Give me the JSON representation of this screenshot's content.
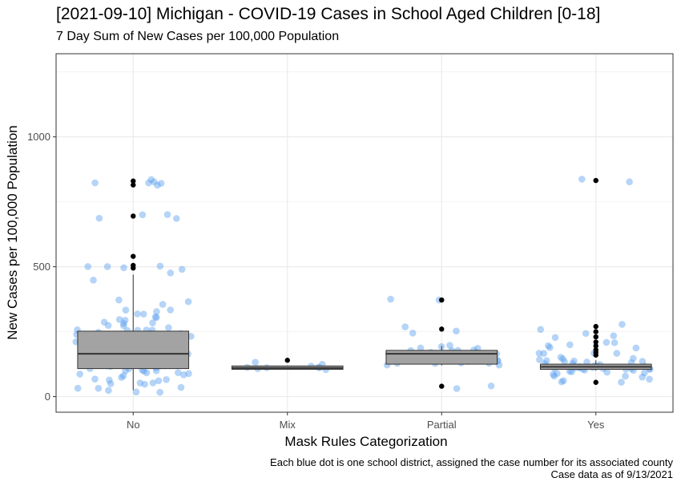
{
  "chart_data": {
    "type": "box",
    "title": "[2021-09-10] Michigan - COVID-19 Cases in School Aged Children [0-18]",
    "subtitle": "7 Day Sum of New Cases per 100,000 Population",
    "xlabel": "Mask Rules Categorization",
    "ylabel": "New Cases per 100,000 Population",
    "ylim": [
      -60,
      1320
    ],
    "yticks": [
      0,
      500,
      1000
    ],
    "grid": true,
    "legend": "none",
    "categories": [
      "No",
      "Mix",
      "Partial",
      "Yes"
    ],
    "caption": [
      "Each blue dot is one school district, assigned the case number for its associated county",
      "Case data as of 9/13/2021"
    ],
    "boxes": [
      {
        "category": "No",
        "min": 25,
        "q1": 108,
        "median": 165,
        "q3": 252,
        "max": 470,
        "outliers": [
          495,
          505,
          540,
          695,
          815,
          830
        ]
      },
      {
        "category": "Mix",
        "min": 105,
        "q1": 105,
        "median": 110,
        "q3": 118,
        "max": 120,
        "outliers": [
          140
        ]
      },
      {
        "category": "Partial",
        "min": 120,
        "q1": 125,
        "median": 165,
        "q3": 178,
        "max": 195,
        "outliers": [
          40,
          260,
          372
        ]
      },
      {
        "category": "Yes",
        "min": 100,
        "q1": 105,
        "median": 115,
        "q3": 125,
        "max": 140,
        "outliers": [
          55,
          160,
          170,
          180,
          195,
          210,
          230,
          250,
          270,
          832
        ]
      }
    ],
    "points": [
      {
        "category": "No",
        "values": [
          832,
          832,
          830,
          830,
          820,
          818,
          695,
          695,
          692,
          692,
          500,
          500,
          498,
          497,
          495,
          470,
          445,
          372,
          365,
          350,
          340,
          330,
          325,
          320,
          310,
          305,
          300,
          295,
          290,
          285,
          280,
          275,
          270,
          268,
          265,
          262,
          260,
          258,
          255,
          252,
          250,
          248,
          245,
          242,
          240,
          238,
          235,
          232,
          230,
          228,
          225,
          222,
          220,
          218,
          215,
          212,
          210,
          208,
          205,
          202,
          200,
          198,
          195,
          192,
          190,
          188,
          185,
          182,
          180,
          178,
          175,
          172,
          170,
          168,
          165,
          162,
          160,
          158,
          155,
          152,
          150,
          148,
          145,
          142,
          140,
          138,
          135,
          132,
          130,
          128,
          125,
          122,
          120,
          118,
          115,
          112,
          110,
          108,
          105,
          102,
          100,
          98,
          95,
          92,
          90,
          88,
          85,
          82,
          80,
          78,
          75,
          72,
          70,
          65,
          60,
          55,
          50,
          45,
          40,
          35,
          30,
          25,
          25,
          25
        ]
      },
      {
        "category": "Mix",
        "values": [
          140,
          120,
          118,
          115,
          112,
          110,
          108,
          105,
          105
        ]
      },
      {
        "category": "Partial",
        "values": [
          372,
          372,
          260,
          260,
          250,
          195,
          190,
          185,
          180,
          180,
          178,
          178,
          175,
          175,
          172,
          170,
          170,
          168,
          165,
          165,
          162,
          160,
          160,
          158,
          155,
          150,
          148,
          145,
          142,
          140,
          138,
          135,
          130,
          128,
          125,
          122,
          120,
          120,
          40,
          40
        ]
      },
      {
        "category": "Yes",
        "values": [
          832,
          832,
          270,
          265,
          250,
          230,
          220,
          210,
          200,
          195,
          190,
          185,
          180,
          175,
          170,
          165,
          160,
          155,
          150,
          145,
          140,
          138,
          135,
          132,
          130,
          128,
          125,
          125,
          122,
          122,
          120,
          120,
          118,
          118,
          115,
          115,
          115,
          112,
          112,
          110,
          110,
          108,
          108,
          105,
          105,
          102,
          100,
          100,
          98,
          95,
          92,
          90,
          85,
          80,
          75,
          70,
          65,
          60,
          55,
          55
        ]
      }
    ],
    "colors": {
      "points": "#5aa0ee",
      "box_fill": "#a3a3a3",
      "box_line": "#333333",
      "outlier": "#000000",
      "grid": "#ebebeb",
      "panel_border": "#333333"
    }
  }
}
